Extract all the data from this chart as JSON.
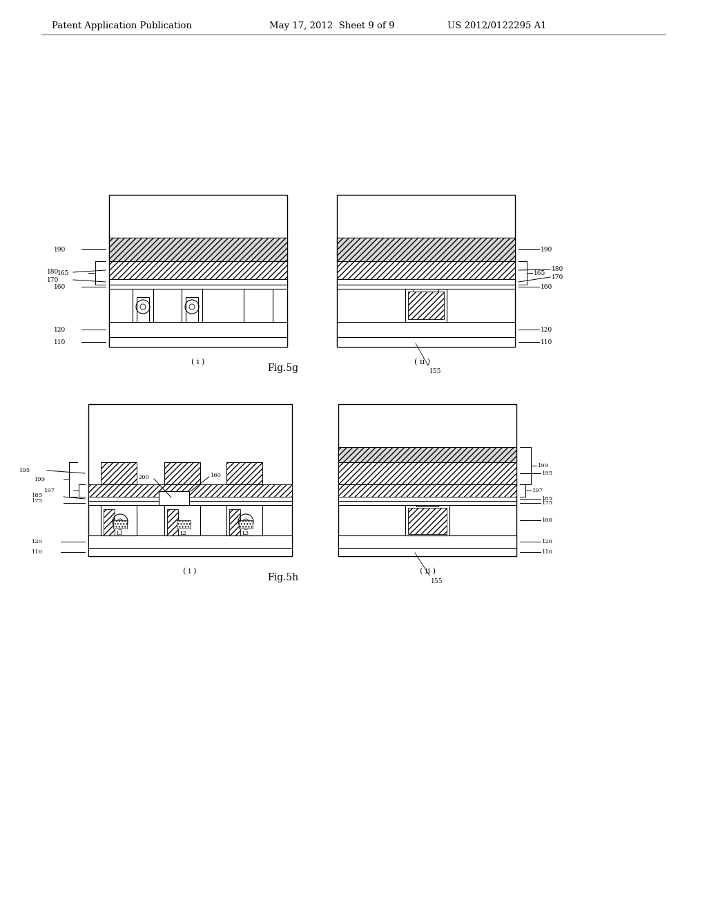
{
  "title_left": "Patent Application Publication",
  "title_mid": "May 17, 2012  Sheet 9 of 9",
  "title_right": "US 2012/0122295 A1",
  "fig5g_label": "Fig.5g",
  "fig5h_label": "Fig.5h",
  "bg_color": "#ffffff"
}
